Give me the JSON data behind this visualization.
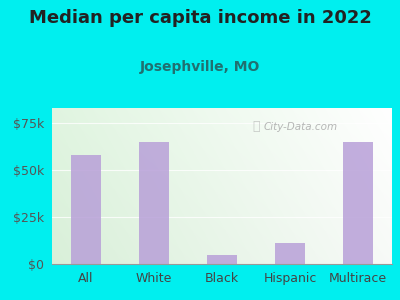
{
  "title": "Median per capita income in 2022",
  "subtitle": "Josephville, MO",
  "categories": [
    "All",
    "White",
    "Black",
    "Hispanic",
    "Multirace"
  ],
  "values": [
    58000,
    65000,
    5000,
    11000,
    65000
  ],
  "bar_color": "#b8a0d8",
  "background_outer": "#00efef",
  "background_inner_left": "#d8eed8",
  "background_inner_right": "#f5fff5",
  "title_color": "#222222",
  "subtitle_color": "#207070",
  "tick_label_color": "#555555",
  "ytick_labels": [
    "$0",
    "$25k",
    "$50k",
    "$75k"
  ],
  "ytick_values": [
    0,
    25000,
    50000,
    75000
  ],
  "ylim": [
    0,
    83000
  ],
  "watermark": "City-Data.com",
  "title_fontsize": 13,
  "subtitle_fontsize": 10,
  "axis_label_fontsize": 9
}
